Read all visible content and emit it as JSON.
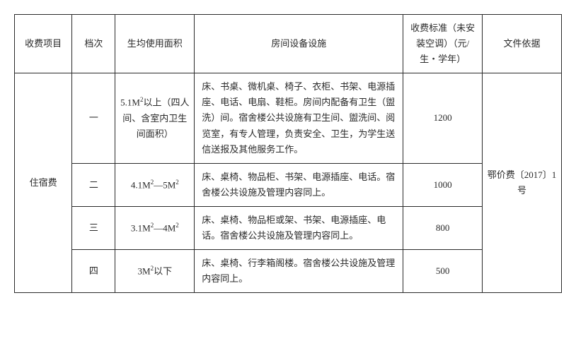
{
  "headers": {
    "c1": "收费项目",
    "c2": "档次",
    "c3": "生均使用面积",
    "c4": "房间设备设施",
    "c5": "收费标准（未安装空调）（元/生・学年）",
    "c6": "文件依据"
  },
  "category": "住宿费",
  "doc_ref": "鄂价费〔2017〕1号",
  "rows": [
    {
      "level": "一",
      "area_html": "5.1M<span class=\"sup\">2</span>以上（四人间、含室内卫生间面积）",
      "facilities": "床、书桌、微机桌、椅子、衣柜、书架、电源插座、电话、电扇、鞋柜。房间内配备有卫生（盥洗）间。宿舍楼公共设施有卫生间、盥洗间、阅览室，有专人管理，负责安全、卫生，为学生送信送报及其他服务工作。",
      "price": "1200"
    },
    {
      "level": "二",
      "area_html": "4.1M<span class=\"sup\">2</span>—5M<span class=\"sup\">2</span>",
      "facilities": "床、桌椅、物品柜、书架、电源插座、电话。宿舍楼公共设施及管理内容同上。",
      "price": "1000"
    },
    {
      "level": "三",
      "area_html": "3.1M<span class=\"sup\">2</span>—4M<span class=\"sup\">2</span>",
      "facilities": "床、桌椅、物品柜或架、书架、电源插座、电话。宿舍楼公共设施及管理内容同上。",
      "price": "800"
    },
    {
      "level": "四",
      "area_html": "3M<span class=\"sup\">2</span>以下",
      "facilities": "床、桌椅、行李箱阁楼。宿舍楼公共设施及管理内容同上。",
      "price": "500"
    }
  ]
}
